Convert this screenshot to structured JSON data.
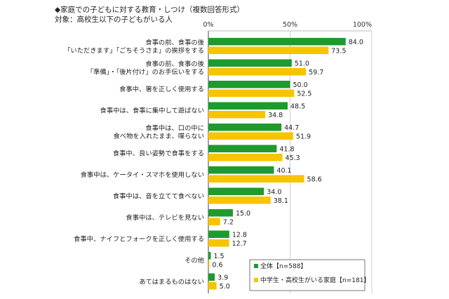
{
  "chart_data": {
    "type": "bar",
    "orientation": "horizontal",
    "title": "◆家庭での子どもに対する教育・しつけ（複数回答形式）",
    "subtitle": "対象：高校生以下の子どもがいる人",
    "xlim": [
      0,
      100
    ],
    "x_ticks": [
      "0%",
      "50%",
      "100%"
    ],
    "grid": true,
    "legend_position": "bottom-right",
    "categories": [
      [
        "食事の前、食事の後",
        "「いただきます」「ごちそうさま」の挨拶をする"
      ],
      [
        "食事の前、食事の後",
        "「準備」・「後片付け」のお手伝いをする"
      ],
      [
        "食事中、箸を正しく使用する"
      ],
      [
        "食事中は、食事に集中して遊ばない"
      ],
      [
        "食事中は、口の中に",
        "食べ物を入れたまま、喋らない"
      ],
      [
        "食事中、良い姿勢で食事をする"
      ],
      [
        "食事中は、ケータイ・スマホを使用しない"
      ],
      [
        "食事中は、音を立てて食べない"
      ],
      [
        "食事中は、テレビを見ない"
      ],
      [
        "食事中、ナイフとフォークを正しく使用する"
      ],
      [
        "その他"
      ],
      [
        "あてはまるものはない"
      ]
    ],
    "series": [
      {
        "name": "全体【n=588】",
        "color": "#1e9a2e",
        "values": [
          84.0,
          51.0,
          50.0,
          48.5,
          44.7,
          41.8,
          40.1,
          34.0,
          15.0,
          12.8,
          1.5,
          3.9
        ],
        "labels": [
          "84.0",
          "51.0",
          "50.0",
          "48.5",
          "44.7",
          "41.8",
          "40.1",
          "34.0",
          "15.0",
          "12.8",
          "1.5",
          "3.9"
        ]
      },
      {
        "name": "中学生・高校生がいる家庭【n=181】",
        "color": "#f7c400",
        "values": [
          73.5,
          59.7,
          52.5,
          34.8,
          51.9,
          45.3,
          58.6,
          38.1,
          7.2,
          12.7,
          0.6,
          5.0
        ],
        "labels": [
          "73.5",
          "59.7",
          "52.5",
          "34.8",
          "51.9",
          "45.3",
          "58.6",
          "38.1",
          "7.2",
          "12.7",
          "0.6",
          "5.0"
        ]
      }
    ]
  }
}
